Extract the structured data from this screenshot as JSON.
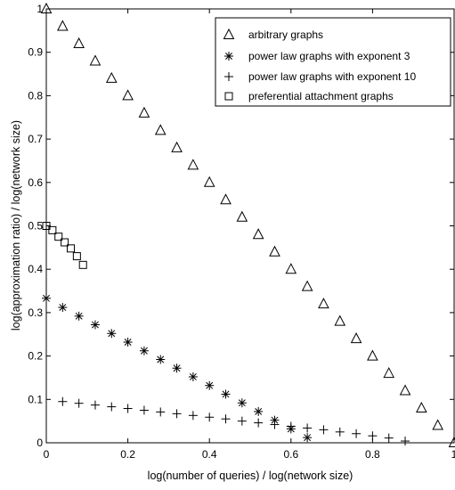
{
  "chart_data": {
    "type": "scatter",
    "title": "",
    "xlabel": "log(number of queries) / log(network size)",
    "ylabel": "log(approximation ratio) / log(network size)",
    "xlim": [
      0,
      1
    ],
    "ylim": [
      0,
      1
    ],
    "grid": false,
    "legend_position": "top-right",
    "x_ticks": [
      "0",
      "0.2",
      "0.4",
      "0.6",
      "0.8",
      "1"
    ],
    "y_ticks": [
      "0",
      "0.1",
      "0.2",
      "0.3",
      "0.4",
      "0.5",
      "0.6",
      "0.7",
      "0.8",
      "0.9",
      "1"
    ],
    "series": [
      {
        "name": "arbitrary graphs",
        "marker": "triangle",
        "x": [
          0,
          0.04,
          0.08,
          0.12,
          0.16,
          0.2,
          0.24,
          0.28,
          0.32,
          0.36,
          0.4,
          0.44,
          0.48,
          0.52,
          0.56,
          0.6,
          0.64,
          0.68,
          0.72,
          0.76,
          0.8,
          0.84,
          0.88,
          0.92,
          0.96,
          1.0
        ],
        "y": [
          1.0,
          0.96,
          0.92,
          0.88,
          0.84,
          0.8,
          0.76,
          0.72,
          0.68,
          0.64,
          0.6,
          0.56,
          0.52,
          0.48,
          0.44,
          0.4,
          0.36,
          0.32,
          0.28,
          0.24,
          0.2,
          0.16,
          0.12,
          0.08,
          0.04,
          0.0
        ]
      },
      {
        "name": "power law graphs with exponent 3",
        "marker": "asterisk",
        "x": [
          0,
          0.04,
          0.08,
          0.12,
          0.16,
          0.2,
          0.24,
          0.28,
          0.32,
          0.36,
          0.4,
          0.44,
          0.48,
          0.52,
          0.56,
          0.6,
          0.64
        ],
        "y": [
          0.333,
          0.312,
          0.292,
          0.272,
          0.252,
          0.232,
          0.212,
          0.192,
          0.172,
          0.152,
          0.132,
          0.112,
          0.092,
          0.072,
          0.052,
          0.032,
          0.012
        ]
      },
      {
        "name": "power law graphs with exponent 10",
        "marker": "plus",
        "x": [
          0.04,
          0.08,
          0.12,
          0.16,
          0.2,
          0.24,
          0.28,
          0.32,
          0.36,
          0.4,
          0.44,
          0.48,
          0.52,
          0.56,
          0.6,
          0.64,
          0.68,
          0.72,
          0.76,
          0.8,
          0.84,
          0.88
        ],
        "y": [
          0.095,
          0.091,
          0.087,
          0.083,
          0.079,
          0.075,
          0.071,
          0.067,
          0.063,
          0.059,
          0.055,
          0.05,
          0.046,
          0.042,
          0.038,
          0.034,
          0.03,
          0.025,
          0.021,
          0.016,
          0.011,
          0.004
        ]
      },
      {
        "name": "preferential attachment graphs",
        "marker": "square",
        "x": [
          0.0,
          0.015,
          0.03,
          0.045,
          0.06,
          0.075,
          0.09
        ],
        "y": [
          0.5,
          0.49,
          0.475,
          0.462,
          0.448,
          0.43,
          0.41
        ]
      }
    ]
  }
}
